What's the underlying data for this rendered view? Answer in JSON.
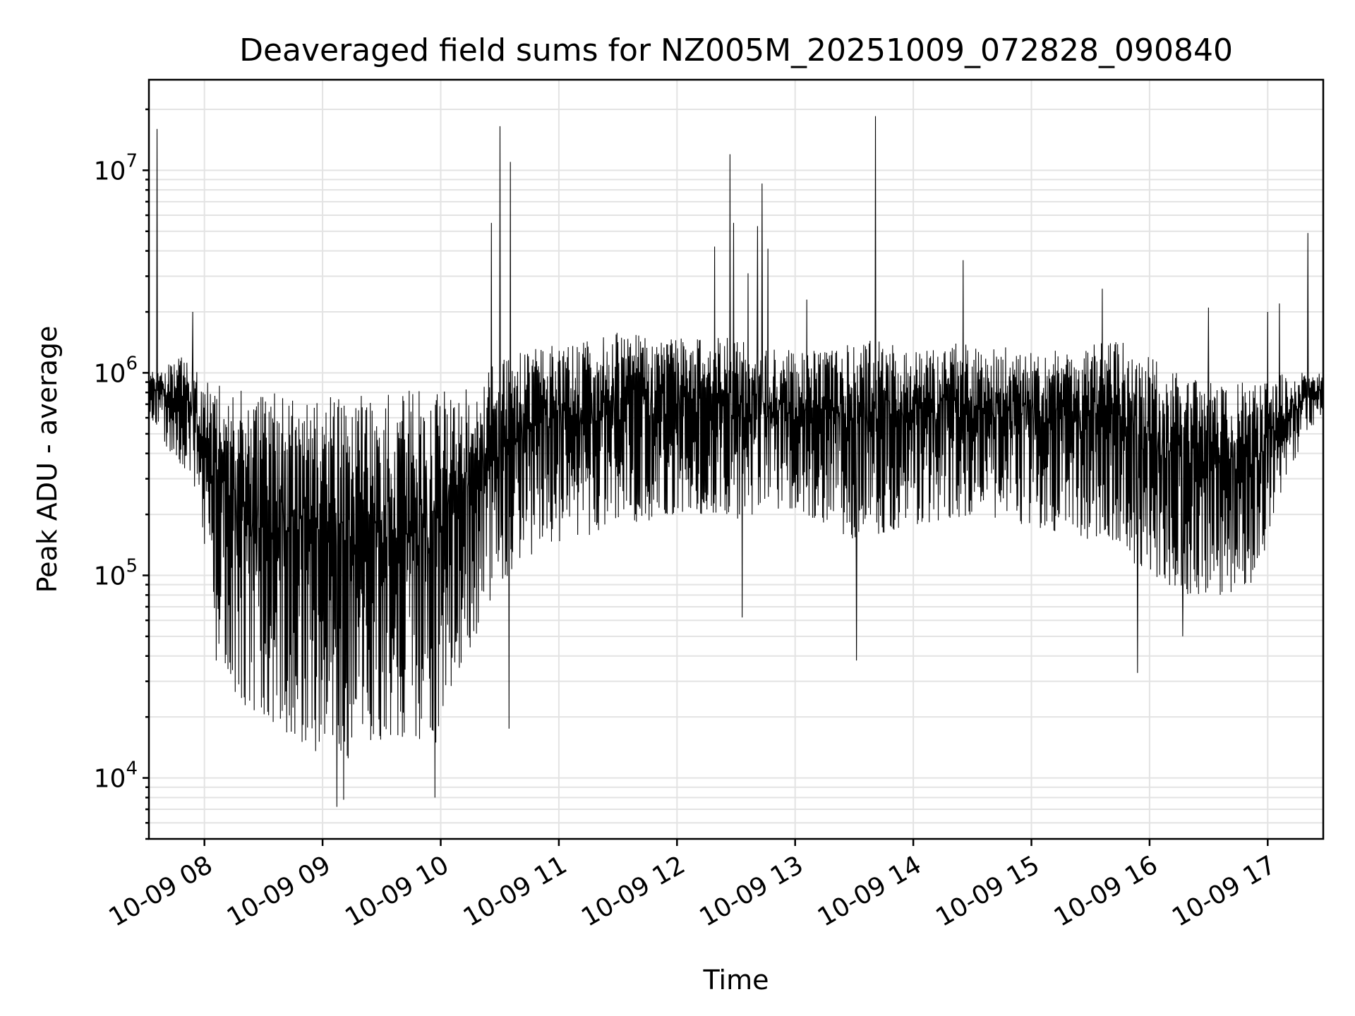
{
  "chart_data": {
    "type": "line",
    "title": "Deaveraged field sums for NZ005M_20251009_072828_090840",
    "xlabel": "Time",
    "ylabel": "Peak ADU - average",
    "yscale": "log",
    "ylim": [
      5000,
      28000000
    ],
    "xlim_hours": [
      7.53,
      17.47
    ],
    "grid": true,
    "x_ticks": [
      {
        "hour": 8,
        "label": "10-09 08"
      },
      {
        "hour": 9,
        "label": "10-09 09"
      },
      {
        "hour": 10,
        "label": "10-09 10"
      },
      {
        "hour": 11,
        "label": "10-09 11"
      },
      {
        "hour": 12,
        "label": "10-09 12"
      },
      {
        "hour": 13,
        "label": "10-09 13"
      },
      {
        "hour": 14,
        "label": "10-09 14"
      },
      {
        "hour": 15,
        "label": "10-09 15"
      },
      {
        "hour": 16,
        "label": "10-09 16"
      },
      {
        "hour": 17,
        "label": "10-09 17"
      }
    ],
    "y_ticks": [
      {
        "value": 10000,
        "base": "10",
        "exp": "4"
      },
      {
        "value": 100000,
        "base": "10",
        "exp": "5"
      },
      {
        "value": 1000000,
        "base": "10",
        "exp": "6"
      },
      {
        "value": 10000000,
        "base": "10",
        "exp": "7"
      }
    ],
    "envelope": {
      "hours": [
        7.53,
        7.65,
        7.8,
        7.95,
        8.05,
        8.2,
        8.4,
        8.6,
        8.8,
        9.0,
        9.2,
        9.4,
        9.6,
        9.8,
        9.95,
        10.1,
        10.3,
        10.5,
        10.7,
        10.9,
        11.1,
        11.3,
        11.5,
        11.7,
        11.9,
        12.1,
        12.3,
        12.5,
        12.7,
        12.9,
        13.1,
        13.3,
        13.5,
        13.7,
        13.9,
        14.1,
        14.3,
        14.5,
        14.7,
        14.9,
        15.1,
        15.3,
        15.5,
        15.7,
        15.9,
        16.1,
        16.3,
        16.5,
        16.7,
        16.9,
        17.05,
        17.2,
        17.35,
        17.47
      ],
      "low": [
        600000,
        450000,
        350000,
        250000,
        60000,
        30000,
        20000,
        16000,
        15000,
        13000,
        12000,
        15000,
        16000,
        15000,
        14000,
        30000,
        50000,
        90000,
        120000,
        140000,
        150000,
        160000,
        170000,
        180000,
        200000,
        200000,
        200000,
        190000,
        200000,
        210000,
        200000,
        170000,
        150000,
        160000,
        170000,
        180000,
        190000,
        200000,
        190000,
        180000,
        170000,
        160000,
        150000,
        140000,
        110000,
        90000,
        80000,
        80000,
        80000,
        90000,
        200000,
        350000,
        500000,
        650000
      ],
      "high": [
        1000000,
        1100000,
        1200000,
        1000000,
        900000,
        850000,
        800000,
        800000,
        800000,
        850000,
        850000,
        850000,
        850000,
        850000,
        850000,
        800000,
        1000000,
        1200000,
        1300000,
        1400000,
        1500000,
        1500000,
        1600000,
        1600000,
        1500000,
        1500000,
        1500000,
        1500000,
        1400000,
        1300000,
        1300000,
        1300000,
        1400000,
        1500000,
        1300000,
        1300000,
        1400000,
        1400000,
        1400000,
        1300000,
        1300000,
        1300000,
        1400000,
        1500000,
        1300000,
        1100000,
        1000000,
        900000,
        900000,
        900000,
        1000000,
        1000000,
        1000000,
        1000000
      ]
    },
    "spikes": [
      {
        "hour": 7.6,
        "value": 16000000
      },
      {
        "hour": 7.9,
        "value": 2000000
      },
      {
        "hour": 10.43,
        "value": 5500000
      },
      {
        "hour": 10.5,
        "value": 16500000
      },
      {
        "hour": 10.59,
        "value": 11000000
      },
      {
        "hour": 12.32,
        "value": 4200000
      },
      {
        "hour": 12.45,
        "value": 12000000
      },
      {
        "hour": 12.48,
        "value": 5500000
      },
      {
        "hour": 12.6,
        "value": 3100000
      },
      {
        "hour": 12.68,
        "value": 5300000
      },
      {
        "hour": 12.72,
        "value": 8600000
      },
      {
        "hour": 12.77,
        "value": 4100000
      },
      {
        "hour": 13.1,
        "value": 2300000
      },
      {
        "hour": 13.68,
        "value": 18500000
      },
      {
        "hour": 14.42,
        "value": 3600000
      },
      {
        "hour": 15.6,
        "value": 2600000
      },
      {
        "hour": 16.5,
        "value": 2100000
      },
      {
        "hour": 17.0,
        "value": 2000000
      },
      {
        "hour": 17.1,
        "value": 2200000
      },
      {
        "hour": 17.34,
        "value": 4900000
      }
    ],
    "dips": [
      {
        "hour": 8.1,
        "value": 38000
      },
      {
        "hour": 9.12,
        "value": 7200
      },
      {
        "hour": 9.18,
        "value": 7800
      },
      {
        "hour": 9.95,
        "value": 8000
      },
      {
        "hour": 10.58,
        "value": 17500
      },
      {
        "hour": 12.55,
        "value": 62000
      },
      {
        "hour": 13.52,
        "value": 38000
      },
      {
        "hour": 15.9,
        "value": 33000
      },
      {
        "hour": 16.28,
        "value": 50000
      }
    ]
  }
}
